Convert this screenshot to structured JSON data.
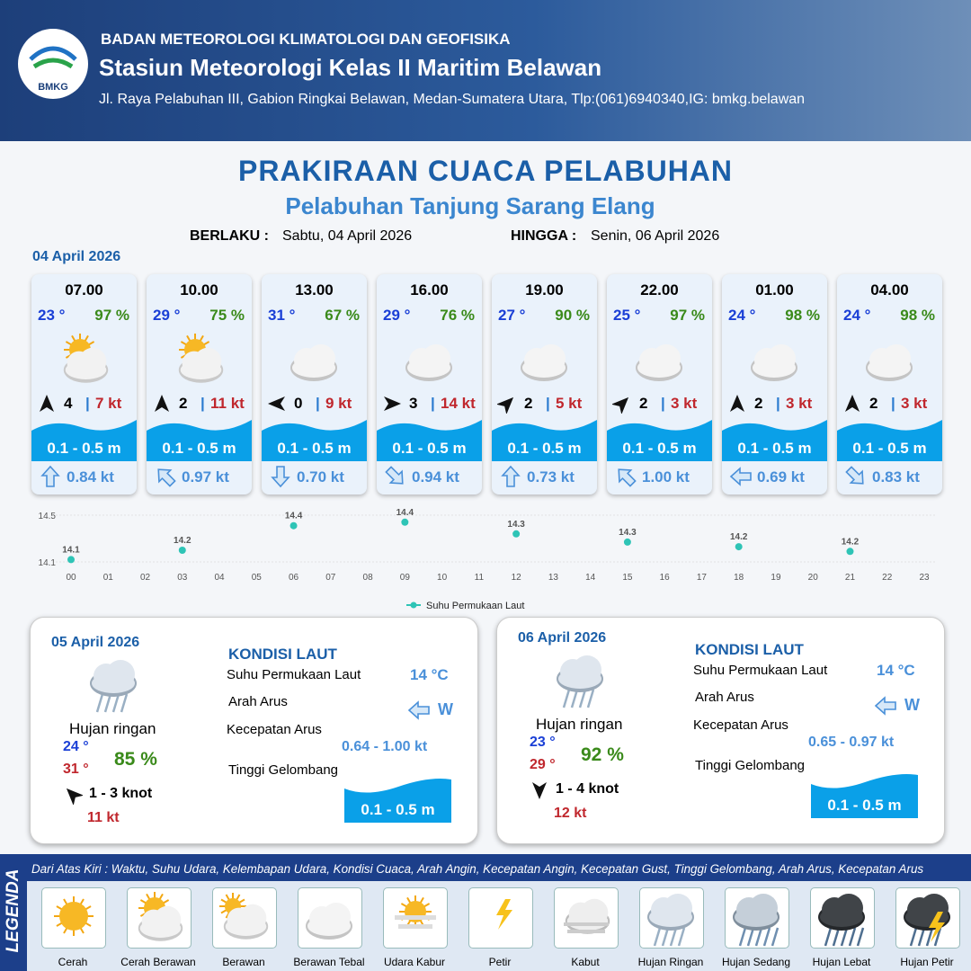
{
  "header": {
    "logo": "BMKG",
    "agency": "BADAN METEOROLOGI KLIMATOLOGI DAN GEOFISIKA",
    "station": "Stasiun Meteorologi Kelas II Maritim Belawan",
    "address": "Jl. Raya Pelabuhan III, Gabion Ringkai Belawan, Medan-Sumatera Utara, Tlp:(061)6940340,IG: bmkg.belawan"
  },
  "title": "PRAKIRAAN CUACA PELABUHAN",
  "subtitle": "Pelabuhan Tanjung Sarang Elang",
  "validity": {
    "from_label": "BERLAKU :",
    "from": "Sabtu, 04 April 2026",
    "to_label": "HINGGA :",
    "to": "Senin, 06 April 2026"
  },
  "day1": {
    "date": "04 April 2026",
    "hours": [
      {
        "time": "07.00",
        "temp": "23 °",
        "humidity": "97 %",
        "wind": "4",
        "gust": "7 kt",
        "wave": "0.1 - 0.5 m",
        "current": "0.84 kt"
      },
      {
        "time": "10.00",
        "temp": "29 °",
        "humidity": "75 %",
        "wind": "2",
        "gust": "11 kt",
        "wave": "0.1 - 0.5 m",
        "current": "0.97 kt"
      },
      {
        "time": "13.00",
        "temp": "31 °",
        "humidity": "67 %",
        "wind": "0",
        "gust": "9 kt",
        "wave": "0.1 - 0.5 m",
        "current": "0.70 kt"
      },
      {
        "time": "16.00",
        "temp": "29 °",
        "humidity": "76 %",
        "wind": "3",
        "gust": "14 kt",
        "wave": "0.1 - 0.5 m",
        "current": "0.94 kt"
      },
      {
        "time": "19.00",
        "temp": "27 °",
        "humidity": "90 %",
        "wind": "2",
        "gust": "5 kt",
        "wave": "0.1 - 0.5 m",
        "current": "0.73 kt"
      },
      {
        "time": "22.00",
        "temp": "25 °",
        "humidity": "97 %",
        "wind": "2",
        "gust": "3 kt",
        "wave": "0.1 - 0.5 m",
        "current": "1.00 kt"
      },
      {
        "time": "01.00",
        "temp": "24 °",
        "humidity": "98 %",
        "wind": "2",
        "gust": "3 kt",
        "wave": "0.1 - 0.5 m",
        "current": "0.69 kt"
      },
      {
        "time": "04.00",
        "temp": "24 °",
        "humidity": "98 %",
        "wind": "2",
        "gust": "3 kt",
        "wave": "0.1 - 0.5 m",
        "current": "0.83 kt"
      }
    ]
  },
  "chart_data": {
    "type": "scatter",
    "categories": [
      "00",
      "01",
      "02",
      "03",
      "04",
      "05",
      "06",
      "07",
      "08",
      "09",
      "10",
      "11",
      "12",
      "13",
      "14",
      "15",
      "16",
      "17",
      "18",
      "19",
      "20",
      "21",
      "22",
      "23"
    ],
    "series": [
      {
        "name": "Suhu Permukaan Laut",
        "color": "#2ec4b6",
        "values": [
          14.12,
          null,
          null,
          14.2,
          null,
          null,
          14.41,
          null,
          null,
          14.44,
          null,
          null,
          14.34,
          null,
          null,
          14.27,
          null,
          null,
          14.23,
          null,
          null,
          14.19,
          null,
          null
        ],
        "value_labels": [
          "14.1",
          null,
          null,
          "14.2",
          null,
          null,
          "14.4",
          null,
          null,
          "14.4",
          null,
          null,
          "14.3",
          null,
          null,
          "14.3",
          null,
          null,
          "14.2",
          null,
          null,
          "14.2",
          null,
          null
        ]
      }
    ],
    "ylim": [
      14.1,
      14.5
    ],
    "yticks": [
      14.1,
      14.5
    ],
    "grid": true,
    "legend": "bottom"
  },
  "days": [
    {
      "date": "05 April 2026",
      "condition": "Hujan ringan",
      "temp_min": "24 °",
      "temp_max": "31 °",
      "humidity": "85 %",
      "wind": "1 - 3 knot",
      "gust": "11 kt",
      "sea_title": "KONDISI LAUT",
      "sst_label": "Suhu Permukaan Laut",
      "sst": "14 °C",
      "current_dir_label": "Arah Arus",
      "current_dir": "W",
      "current_speed_label": "Kecepatan Arus",
      "current_speed": "0.64 - 1.00 kt",
      "wave_label": "Tinggi Gelombang",
      "wave": "0.1 - 0.5 m"
    },
    {
      "date": "06 April 2026",
      "condition": "Hujan ringan",
      "temp_min": "23 °",
      "temp_max": "29 °",
      "humidity": "92 %",
      "wind": "1 - 4 knot",
      "gust": "12 kt",
      "sea_title": "KONDISI LAUT",
      "sst_label": "Suhu Permukaan Laut",
      "sst": "14 °C",
      "current_dir_label": "Arah Arus",
      "current_dir": "W",
      "current_speed_label": "Kecepatan Arus",
      "current_speed": "0.65  - 0.97 kt",
      "wave_label": "Tinggi Gelombang",
      "wave": "0.1 - 0.5 m"
    }
  ],
  "legend": {
    "title": "LEGENDA",
    "description": "Dari Atas Kiri : Waktu, Suhu Udara, Kelembapan Udara, Kondisi Cuaca, Arah Angin, Kecepatan Angin, Kecepatan Gust, Tinggi Gelombang, Arah Arus, Kecepatan Arus",
    "items": [
      "Cerah",
      "Cerah Berawan",
      "Berawan",
      "Berawan Tebal",
      "Udara Kabur",
      "Petir",
      "Kabut",
      "Hujan Ringan",
      "Hujan Sedang",
      "Hujan Lebat",
      "Hujan Petir"
    ]
  }
}
